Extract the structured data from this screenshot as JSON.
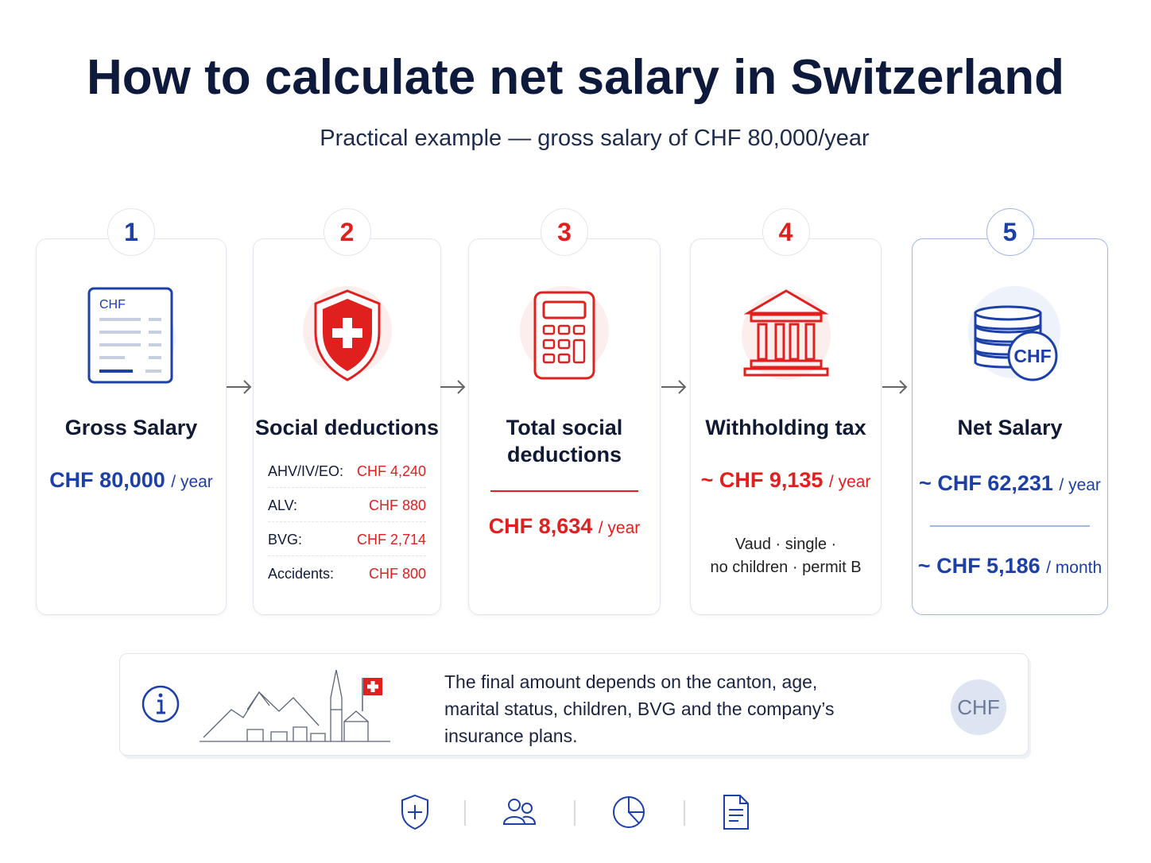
{
  "header": {
    "title": "How to calculate net salary in Switzerland",
    "subtitle": "Practical example — gross salary of CHF 80,000/year"
  },
  "steps": [
    {
      "number": "1",
      "icon_label": "CHF",
      "title": "Gross Salary",
      "amount": "CHF 80,000",
      "unit": "/ year"
    },
    {
      "number": "2",
      "title": "Social deductions",
      "rows": [
        {
          "label": "AHV/IV/EO:",
          "value": "CHF 4,240"
        },
        {
          "label": "ALV:",
          "value": "CHF 880"
        },
        {
          "label": "BVG:",
          "value": "CHF 2,714"
        },
        {
          "label": "Accidents:",
          "value": "CHF 800"
        }
      ]
    },
    {
      "number": "3",
      "title": "Total social deductions",
      "amount": "CHF 8,634",
      "unit": "/ year"
    },
    {
      "number": "4",
      "title": "Withholding tax",
      "amount": "~ CHF 9,135",
      "unit": "/ year",
      "details": [
        "Vaud · single ·",
        "no children · permit B"
      ]
    },
    {
      "number": "5",
      "icon_label": "CHF",
      "title": "Net Salary",
      "amount": "~ CHF 62,231",
      "unit": "/ year",
      "amount2": "~ CHF 5,186",
      "unit2": "/ month"
    }
  ],
  "note": {
    "lines": [
      "The final amount depends on the canton, age,",
      "marital status, children, BVG and the company’s",
      "insurance plans."
    ],
    "badge": "CHF"
  }
}
